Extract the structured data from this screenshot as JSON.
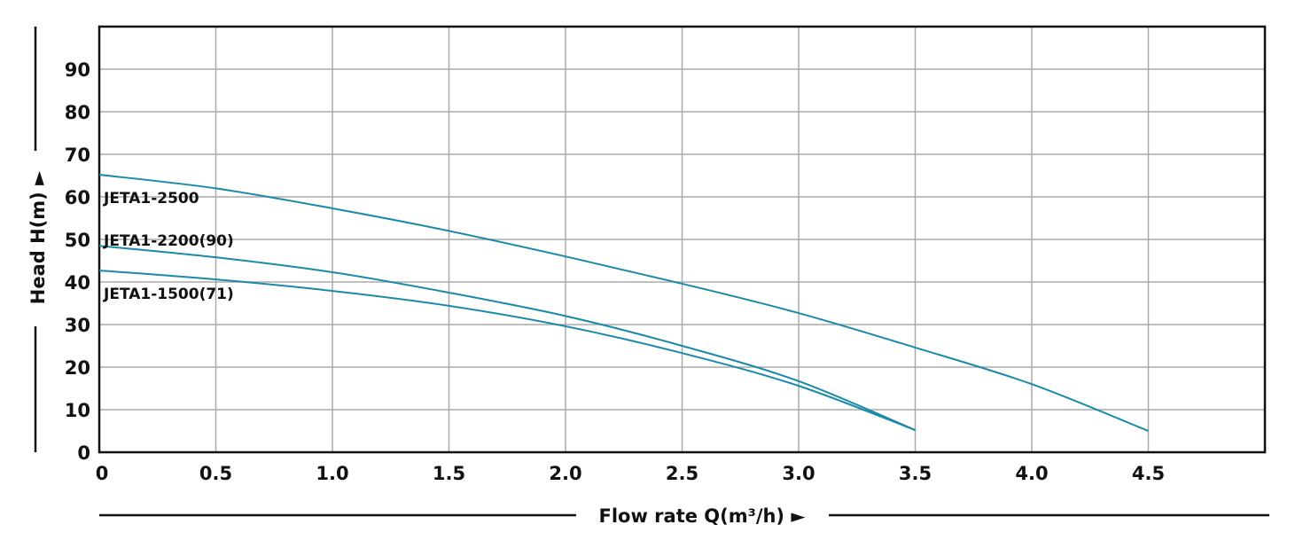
{
  "chart_data": {
    "type": "line",
    "title": "",
    "xlabel": "Flow rate Q(m³/h) ►",
    "ylabel": "Head H(m) ►",
    "xlim": [
      0,
      5.0
    ],
    "ylim": [
      0,
      100
    ],
    "grid": true,
    "x_ticks": [
      0,
      0.5,
      1.0,
      1.5,
      2.0,
      2.5,
      3.0,
      3.5,
      4.0,
      4.5
    ],
    "x_tick_labels": [
      "0",
      "0.5",
      "1.0",
      "1.5",
      "2.0",
      "2.5",
      "3.0",
      "3.5",
      "4.0",
      "4.5"
    ],
    "y_ticks": [
      0,
      10,
      20,
      30,
      40,
      50,
      60,
      70,
      80,
      90
    ],
    "y_tick_labels": [
      "0",
      "10",
      "20",
      "30",
      "40",
      "50",
      "60",
      "70",
      "80",
      "90"
    ],
    "line_color": "#1a8aa8",
    "series": [
      {
        "name": "JETA1-2500",
        "label_y": 60,
        "x": [
          0,
          0.5,
          1.0,
          1.5,
          2.0,
          2.5,
          3.0,
          3.5,
          4.0,
          4.5
        ],
        "y": [
          65.2,
          62.0,
          57.3,
          52.0,
          46.0,
          39.6,
          32.7,
          24.6,
          16.0,
          5.0
        ]
      },
      {
        "name": "JETA1-2200(90)",
        "label_y": 50,
        "x": [
          0,
          0.5,
          1.0,
          1.5,
          2.0,
          2.5,
          3.0,
          3.5
        ],
        "y": [
          48.5,
          45.8,
          42.3,
          37.5,
          32.0,
          25.0,
          16.7,
          5.2
        ]
      },
      {
        "name": "JETA1-1500(71)",
        "label_y": 37.5,
        "x": [
          0,
          0.5,
          1.0,
          1.5,
          2.0,
          2.5,
          3.0,
          3.5
        ],
        "y": [
          42.7,
          40.6,
          37.9,
          34.4,
          29.6,
          23.3,
          15.6,
          5.2
        ]
      }
    ]
  }
}
